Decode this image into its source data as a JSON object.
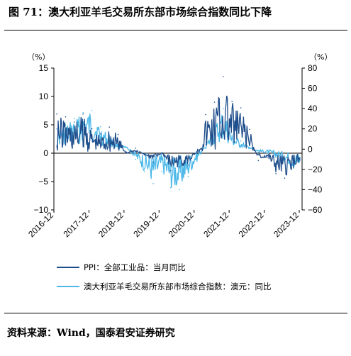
{
  "figure": {
    "title": "图 71：澳大利亚羊毛交易所东部市场综合指数同比下降",
    "source": "资料来源：Wind，国泰君安证券研究"
  },
  "chart_data": {
    "type": "line",
    "x_tick_labels": [
      "2016-12",
      "2017-12",
      "2018-12",
      "2019-12",
      "2020-12",
      "2021-12",
      "2022-12",
      "2023-12"
    ],
    "left_axis": {
      "unit": "（%）",
      "ylim": [
        -10,
        15
      ],
      "ticks": [
        "15",
        "10",
        "5",
        "0",
        "−5",
        "−10"
      ]
    },
    "right_axis": {
      "unit": "（%）",
      "ylim": [
        -60,
        80
      ],
      "ticks": [
        "80",
        "60",
        "40",
        "20",
        "0",
        "−20",
        "−40",
        "−60"
      ]
    },
    "colors": {
      "ppi": "#1f4e8c",
      "wool": "#4bb8e8"
    },
    "series": [
      {
        "name": "PPI：全部工业品：当月同比",
        "axis": "left",
        "x": [
          "2017-01",
          "2017-04",
          "2017-07",
          "2017-10",
          "2018-01",
          "2018-04",
          "2018-07",
          "2018-10",
          "2019-01",
          "2019-04",
          "2019-07",
          "2019-10",
          "2020-01",
          "2020-04",
          "2020-07",
          "2020-10",
          "2021-01",
          "2021-04",
          "2021-07",
          "2021-10",
          "2022-01",
          "2022-04",
          "2022-07",
          "2022-10",
          "2023-01",
          "2023-04",
          "2023-07",
          "2023-10"
        ],
        "values": [
          6.9,
          6.4,
          5.5,
          6.9,
          4.3,
          3.4,
          4.6,
          3.3,
          0.1,
          0.9,
          -0.3,
          -1.6,
          0.1,
          -3.1,
          -2.4,
          -2.1,
          0.3,
          6.8,
          9.0,
          13.5,
          9.1,
          8.0,
          4.2,
          -1.3,
          -0.8,
          -3.6,
          -4.4,
          -2.6
        ]
      },
      {
        "name": "澳大利亚羊毛交易所东部市场综合指数：澳元：同比",
        "axis": "right",
        "x": [
          "2017-01",
          "2017-04",
          "2017-07",
          "2017-10",
          "2018-01",
          "2018-04",
          "2018-07",
          "2018-10",
          "2019-01",
          "2019-04",
          "2019-07",
          "2019-10",
          "2020-01",
          "2020-04",
          "2020-07",
          "2020-10",
          "2021-01",
          "2021-04",
          "2021-07",
          "2021-10",
          "2022-01",
          "2022-04",
          "2022-07",
          "2022-10",
          "2023-01",
          "2023-04",
          "2023-07",
          "2023-10"
        ],
        "values": [
          20,
          24,
          30,
          36,
          38,
          22,
          14,
          5,
          2,
          -10,
          -22,
          -34,
          -22,
          -38,
          -40,
          -27,
          -12,
          5,
          22,
          40,
          14,
          8,
          2,
          -3,
          -4,
          -8,
          -12,
          -18
        ]
      }
    ],
    "legend": [
      "PPI：全部工业品：当月同比",
      "澳大利亚羊毛交易所东部市场综合指数：澳元：同比"
    ],
    "legend_position": "bottom-left",
    "grid": false
  }
}
